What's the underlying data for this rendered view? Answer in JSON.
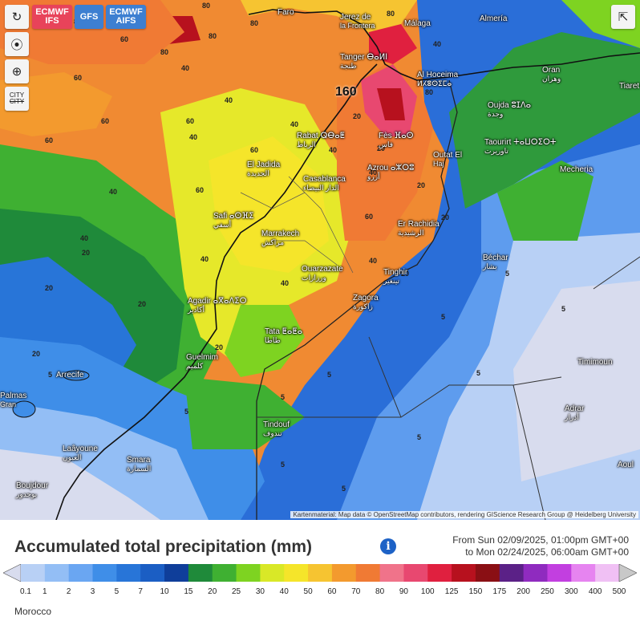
{
  "toolbar": {
    "refresh_icon": "refresh-icon",
    "location_icon": "location-icon",
    "zoom_icon": "zoom-icon",
    "city_toggle_label_top": "CITY",
    "city_toggle_label_bottom": "CITY",
    "share_icon": "share-icon",
    "models": [
      {
        "line1": "ECMWF",
        "line2": "IFS",
        "color": "#e8435a"
      },
      {
        "line1": "GFS",
        "line2": "",
        "color": "#3d7fd1"
      },
      {
        "line1": "ECMWF",
        "line2": "AIFS",
        "color": "#3d7fd1"
      }
    ]
  },
  "map": {
    "attribution": "Kartenmaterial: Map data © OpenStreetMap contributors, rendering GIScience Research Group @ Heidelberg University",
    "max_value_label": "160",
    "cities": [
      {
        "name": "Faro",
        "sub": ""
      },
      {
        "name": "Jerez de",
        "sub": "la Frontera"
      },
      {
        "name": "Málaga",
        "sub": ""
      },
      {
        "name": "Almería",
        "sub": ""
      },
      {
        "name": "Tanger ⴱⴰⵍⵏ",
        "sub": "طنجة"
      },
      {
        "name": "Al Hoceima",
        "sub": "ⵍⵃⵓⵙⵉⵎⴰ"
      },
      {
        "name": "Oran",
        "sub": "وهران"
      },
      {
        "name": "Oujda ⵓⵊⴷⴰ",
        "sub": "وجدة"
      },
      {
        "name": "Rabat ⵕⴱⴰⵟ",
        "sub": "الرباط"
      },
      {
        "name": "Fès ⴼⴰⵙ",
        "sub": "فاس"
      },
      {
        "name": "Taourirt ⵜⴰⵡⵔⵉⵔⵜ",
        "sub": "تاوريرت"
      },
      {
        "name": "Outat El",
        "sub": "Haj"
      },
      {
        "name": "El Jadida",
        "sub": "الجديدة"
      },
      {
        "name": "Azrou ⴰⵣⵔⵓ",
        "sub": "أزرو"
      },
      {
        "name": "Casablanca",
        "sub": "الدار البيضاء"
      },
      {
        "name": "Mecheria",
        "sub": ""
      },
      {
        "name": "Safi ⴰⵙⴼⵉ",
        "sub": "أسفي"
      },
      {
        "name": "Er Rachidia",
        "sub": "الرشيدية"
      },
      {
        "name": "Marrakech",
        "sub": "مراكش"
      },
      {
        "name": "Béchar",
        "sub": "بشار"
      },
      {
        "name": "Ouarzazate",
        "sub": "ورزازات"
      },
      {
        "name": "Tinghir",
        "sub": "تينغير"
      },
      {
        "name": "Zagora",
        "sub": "زاكورة"
      },
      {
        "name": "Agadir ⴰⴳⴰⴷⵉⵔ",
        "sub": "أكادير"
      },
      {
        "name": "Tata ⵟⴰⵟⴰ",
        "sub": "طاطا"
      },
      {
        "name": "Guelmim",
        "sub": "كلميم"
      },
      {
        "name": "Timimoun",
        "sub": ""
      },
      {
        "name": "Arrecife",
        "sub": ""
      },
      {
        "name": "Tindouf",
        "sub": "تندوف"
      },
      {
        "name": "Adrar",
        "sub": "أدرار"
      },
      {
        "name": "Laâyoune",
        "sub": "العيون"
      },
      {
        "name": "Smara",
        "sub": "السمارة"
      },
      {
        "name": "Boujdour",
        "sub": "بوجدور"
      },
      {
        "name": "Aoul",
        "sub": ""
      },
      {
        "name": "Palmas",
        "sub": "Gran"
      },
      {
        "name": "Tiaret",
        "sub": ""
      }
    ],
    "values": [
      "80",
      "80",
      "80",
      "60",
      "80",
      "80",
      "40",
      "60",
      "60",
      "60",
      "60",
      "40",
      "40",
      "60",
      "40",
      "60",
      "40",
      "40",
      "20",
      "40",
      "20",
      "20",
      "40",
      "20",
      "20",
      "40",
      "20",
      "20",
      "5",
      "5",
      "5",
      "5",
      "5",
      "5",
      "5",
      "5",
      "5",
      "5",
      "5",
      "40",
      "40",
      "60",
      "80",
      "80",
      "40",
      "20",
      "20",
      "20"
    ]
  },
  "footer": {
    "title": "Accumulated total precipitation (mm)",
    "info_icon": "info-icon",
    "period_from": "From Sun 02/09/2025, 01:00pm GMT+00",
    "period_to": "to Mon 02/24/2025, 06:00am GMT+00",
    "region": "Morocco"
  },
  "legend": {
    "labels": [
      "0.1",
      "1",
      "2",
      "3",
      "5",
      "7",
      "10",
      "15",
      "20",
      "25",
      "30",
      "40",
      "50",
      "60",
      "70",
      "80",
      "90",
      "100",
      "125",
      "150",
      "175",
      "200",
      "250",
      "300",
      "400",
      "500"
    ],
    "colors": [
      "#d8dcee",
      "#b8d0f5",
      "#93bef5",
      "#6aa6f2",
      "#3f8ee8",
      "#2875d8",
      "#1b5ec4",
      "#0f3e9a",
      "#1f8a3a",
      "#3fb032",
      "#7ed321",
      "#d9e827",
      "#f5e52a",
      "#f6c431",
      "#f39a2e",
      "#f07a34",
      "#f0738a",
      "#e84870",
      "#e0203f",
      "#b7111e",
      "#8a0f14",
      "#5b2187",
      "#8f2bbf",
      "#c23fe0",
      "#e684f0",
      "#f0c0f4",
      "#c8c8c8"
    ]
  }
}
